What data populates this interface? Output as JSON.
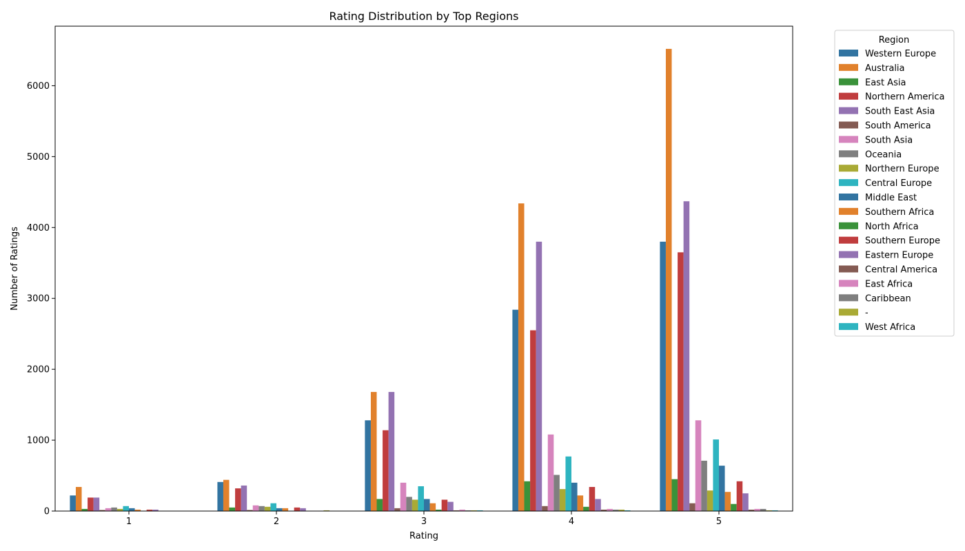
{
  "chart_data": {
    "type": "bar",
    "title": "Rating Distribution by Top Regions",
    "xlabel": "Rating",
    "ylabel": "Number of Ratings",
    "categories": [
      "1",
      "2",
      "3",
      "4",
      "5"
    ],
    "ylim": [
      0,
      6840
    ],
    "yticks": [
      0,
      1000,
      2000,
      3000,
      4000,
      5000,
      6000
    ],
    "legend_title": "Region",
    "legend_position": "outside-right",
    "series": [
      {
        "name": "Western Europe",
        "color": "#3274a1",
        "values": [
          220,
          410,
          1280,
          2840,
          3800
        ]
      },
      {
        "name": "Australia",
        "color": "#e1812c",
        "values": [
          340,
          440,
          1680,
          4340,
          6520
        ]
      },
      {
        "name": "East Asia",
        "color": "#3a923a",
        "values": [
          30,
          50,
          170,
          420,
          450
        ]
      },
      {
        "name": "Northern America",
        "color": "#c03d3e",
        "values": [
          190,
          320,
          1140,
          2550,
          3650
        ]
      },
      {
        "name": "South East Asia",
        "color": "#9372b2",
        "values": [
          190,
          360,
          1680,
          3800,
          4370
        ]
      },
      {
        "name": "South America",
        "color": "#845b53",
        "values": [
          15,
          15,
          40,
          70,
          110
        ]
      },
      {
        "name": "South Asia",
        "color": "#d684bd",
        "values": [
          40,
          80,
          400,
          1080,
          1280
        ]
      },
      {
        "name": "Oceania",
        "color": "#7f7f7f",
        "values": [
          50,
          70,
          200,
          510,
          710
        ]
      },
      {
        "name": "Northern Europe",
        "color": "#a9aa35",
        "values": [
          30,
          60,
          160,
          310,
          290
        ]
      },
      {
        "name": "Central Europe",
        "color": "#2eb4c0",
        "values": [
          70,
          110,
          350,
          770,
          1010
        ]
      },
      {
        "name": "Middle East",
        "color": "#3274a1",
        "values": [
          40,
          40,
          170,
          400,
          640
        ]
      },
      {
        "name": "Southern Africa",
        "color": "#e1812c",
        "values": [
          20,
          40,
          110,
          220,
          270
        ]
      },
      {
        "name": "North Africa",
        "color": "#3a923a",
        "values": [
          5,
          5,
          20,
          60,
          100
        ]
      },
      {
        "name": "Southern Europe",
        "color": "#c03d3e",
        "values": [
          20,
          50,
          160,
          340,
          420
        ]
      },
      {
        "name": "Eastern Europe",
        "color": "#9372b2",
        "values": [
          20,
          40,
          130,
          170,
          250
        ]
      },
      {
        "name": "Central America",
        "color": "#845b53",
        "values": [
          3,
          5,
          10,
          20,
          20
        ]
      },
      {
        "name": "East Africa",
        "color": "#d684bd",
        "values": [
          3,
          5,
          20,
          30,
          30
        ]
      },
      {
        "name": "Caribbean",
        "color": "#7f7f7f",
        "values": [
          3,
          5,
          10,
          20,
          30
        ]
      },
      {
        "name": "-",
        "color": "#a9aa35",
        "values": [
          3,
          10,
          10,
          20,
          10
        ]
      },
      {
        "name": "West Africa",
        "color": "#2eb4c0",
        "values": [
          2,
          3,
          10,
          10,
          10
        ]
      }
    ]
  }
}
